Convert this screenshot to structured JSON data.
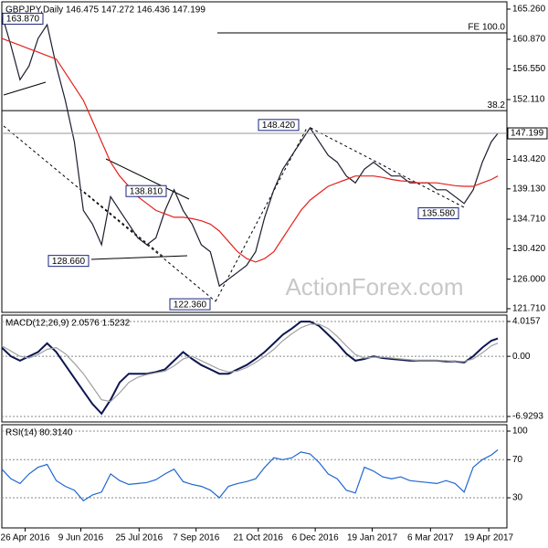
{
  "chart_data": [
    {
      "type": "line",
      "title": "GBPJPY,Daily 146.475 147.272 146.436 147.199",
      "xlim": [
        0,
        390
      ],
      "x": [
        0,
        7,
        14,
        21,
        28,
        35,
        42,
        49,
        56,
        63,
        70,
        77,
        84,
        91,
        98,
        105,
        112,
        119,
        126,
        133,
        140,
        147,
        154,
        161,
        168,
        175,
        182,
        189,
        196,
        203,
        210,
        217,
        224,
        231,
        238,
        245,
        252,
        259,
        266,
        273,
        280,
        287,
        294,
        301,
        308,
        315,
        322,
        329,
        336,
        343,
        350,
        357,
        364,
        371,
        378,
        383
      ],
      "series": [
        {
          "name": "GBPJPY",
          "color": "#1c1c2e",
          "values": [
            164.5,
            160,
            155,
            157,
            161,
            163,
            157,
            152,
            146,
            136,
            134,
            131,
            138,
            136,
            134,
            132,
            131,
            132,
            136,
            139,
            136,
            134,
            131,
            130,
            125,
            126,
            127,
            128,
            130,
            135,
            139,
            142,
            144,
            146,
            148,
            146,
            144,
            143,
            141,
            140,
            142,
            143,
            142,
            141,
            141,
            140,
            140,
            140,
            139,
            139,
            138,
            137,
            139,
            143,
            146,
            147.199
          ]
        },
        {
          "name": "MA",
          "color": "#e3211c",
          "values": [
            161,
            160.5,
            160,
            159.5,
            159,
            158.5,
            158,
            156,
            154,
            152,
            149,
            146,
            143,
            141,
            139.5,
            138,
            137,
            136,
            135.5,
            135,
            135,
            134.8,
            134.5,
            134,
            133,
            131.5,
            130,
            129,
            128.5,
            129,
            130,
            132,
            134,
            136,
            137.5,
            138.5,
            139.5,
            140,
            140.5,
            141,
            141,
            141,
            140.8,
            140.5,
            140.3,
            140.2,
            140,
            140,
            140,
            139.8,
            139.6,
            139.5,
            139.5,
            140,
            140.5,
            141
          ]
        }
      ],
      "ylim": [
        121.18,
        166.32
      ],
      "yticks": [
        {
          "value": 165.26,
          "label": "165.260"
        },
        {
          "value": 160.87,
          "label": "160.870"
        },
        {
          "value": 156.55,
          "label": "156.550"
        },
        {
          "value": 152.11,
          "label": "152.110"
        },
        {
          "value": 143.42,
          "label": "143.420"
        },
        {
          "value": 139.13,
          "label": "139.130"
        },
        {
          "value": 134.71,
          "label": "134.710"
        },
        {
          "value": 130.42,
          "label": "130.420"
        },
        {
          "value": 126,
          "label": "126.000"
        },
        {
          "value": 121.71,
          "label": "121.710"
        }
      ],
      "annotations": [
        {
          "value": 163.87,
          "label": "163.870"
        },
        {
          "value": 128.66,
          "label": "128.660"
        },
        {
          "value": 138.81,
          "label": "138.810"
        },
        {
          "value": 122.36,
          "label": "122.360"
        },
        {
          "value": 148.42,
          "label": "148.420"
        },
        {
          "value": 135.58,
          "label": "135.580"
        }
      ],
      "levels": [
        {
          "value": 161.8,
          "label": "FE 100.0"
        },
        {
          "value": 150.5,
          "label": "38.2"
        }
      ],
      "watermark": "ActionForex.com",
      "grid": false
    },
    {
      "type": "line",
      "title": "MACD(12,26,9) 2.0576 1.5232",
      "xlim": [
        0,
        390
      ],
      "x": [
        0,
        7,
        14,
        21,
        28,
        35,
        42,
        49,
        56,
        63,
        70,
        77,
        84,
        91,
        98,
        105,
        112,
        119,
        126,
        133,
        140,
        147,
        154,
        161,
        168,
        175,
        182,
        189,
        196,
        203,
        210,
        217,
        224,
        231,
        238,
        245,
        252,
        259,
        266,
        273,
        280,
        287,
        294,
        301,
        308,
        315,
        322,
        329,
        336,
        343,
        350,
        357,
        364,
        371,
        378,
        383
      ],
      "series": [
        {
          "name": "MACD",
          "color": "#0d1650",
          "values": [
            1,
            0,
            -0.5,
            0,
            0.5,
            1.5,
            0.5,
            -1,
            -2.5,
            -4,
            -5.5,
            -6.6,
            -5,
            -3,
            -2,
            -2,
            -2,
            -1.8,
            -1.5,
            -0.5,
            0.5,
            -0.3,
            -1,
            -1.5,
            -2,
            -2,
            -1.5,
            -1,
            -0.3,
            0.5,
            1.5,
            2.5,
            3.2,
            4,
            4,
            3.5,
            2.5,
            1.5,
            0.3,
            -0.5,
            -0.3,
            0,
            -0.2,
            -0.3,
            -0.4,
            -0.5,
            -0.5,
            -0.5,
            -0.5,
            -0.6,
            -0.6,
            -0.7,
            0,
            1,
            1.8,
            2.0576
          ]
        },
        {
          "name": "Signal",
          "color": "#a0a0a0",
          "values": [
            1.2,
            0.6,
            0,
            -0.2,
            0.2,
            0.8,
            1,
            0.3,
            -0.8,
            -2,
            -3.5,
            -5,
            -5.2,
            -4.2,
            -3,
            -2.4,
            -2.1,
            -1.9,
            -1.7,
            -1.1,
            -0.3,
            0,
            -0.5,
            -1,
            -1.5,
            -1.8,
            -1.7,
            -1.3,
            -0.7,
            0,
            0.8,
            1.8,
            2.6,
            3.3,
            3.7,
            3.7,
            3.2,
            2.3,
            1.2,
            0.2,
            -0.2,
            -0.1,
            -0.1,
            -0.2,
            -0.3,
            -0.4,
            -0.5,
            -0.5,
            -0.5,
            -0.5,
            -0.6,
            -0.6,
            -0.3,
            0.4,
            1.2,
            1.5232
          ]
        }
      ],
      "ylim": [
        -7.56,
        4.75
      ],
      "yticks": [
        4.0157,
        {
          "value": 0,
          "label": "0.00"
        },
        -6.9293
      ],
      "grid": true
    },
    {
      "type": "line",
      "title": "RSI(14) 80.3140",
      "xlim": [
        0,
        390
      ],
      "x": [
        0,
        7,
        14,
        21,
        28,
        35,
        42,
        49,
        56,
        63,
        70,
        77,
        84,
        91,
        98,
        105,
        112,
        119,
        126,
        133,
        140,
        147,
        154,
        161,
        168,
        175,
        182,
        189,
        196,
        203,
        210,
        217,
        224,
        231,
        238,
        245,
        252,
        259,
        266,
        273,
        280,
        287,
        294,
        301,
        308,
        315,
        322,
        329,
        336,
        343,
        350,
        357,
        364,
        371,
        378,
        383
      ],
      "series": [
        {
          "name": "RSI",
          "color": "#1f66d1",
          "values": [
            60,
            50,
            45,
            55,
            62,
            65,
            48,
            42,
            38,
            27,
            33,
            36,
            55,
            48,
            44,
            45,
            46,
            49,
            55,
            60,
            47,
            44,
            42,
            38,
            30,
            42,
            45,
            47,
            50,
            62,
            72,
            70,
            72,
            78,
            76,
            67,
            55,
            50,
            38,
            35,
            62,
            58,
            52,
            50,
            52,
            48,
            47,
            46,
            45,
            48,
            45,
            36,
            62,
            70,
            75,
            80.314
          ]
        }
      ],
      "ylim": [
        -1.6,
        106.7
      ],
      "yticks": [
        100,
        70,
        30
      ],
      "xticks": [
        {
          "value": 18,
          "label": "26 Apr 2016"
        },
        {
          "value": 61,
          "label": "9 Jun 2016"
        },
        {
          "value": 106,
          "label": "25 Jul 2016"
        },
        {
          "value": 150,
          "label": "7 Sep 2016"
        },
        {
          "value": 198,
          "label": "21 Oct 2016"
        },
        {
          "value": 242,
          "label": "6 Dec 2016"
        },
        {
          "value": 286,
          "label": "19 Jan 2017"
        },
        {
          "value": 331,
          "label": "6 Mar 2017"
        },
        {
          "value": 376,
          "label": "19 Apr 2017"
        }
      ],
      "grid": true
    }
  ]
}
